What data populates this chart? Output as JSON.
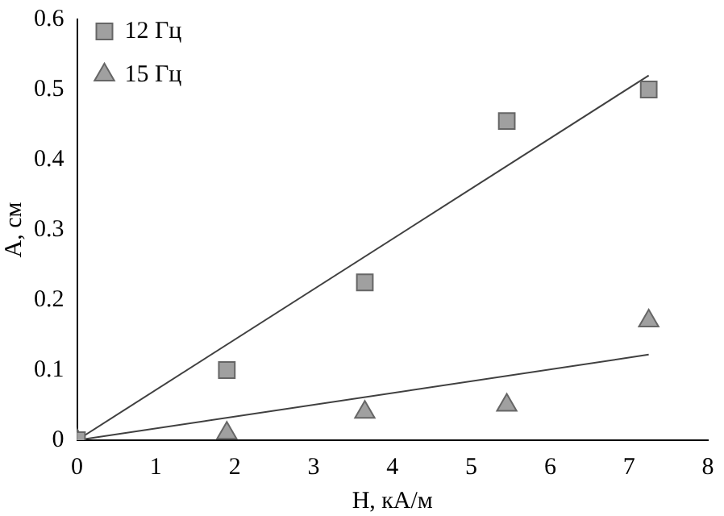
{
  "chart_data": {
    "type": "scatter",
    "xlabel": "H, кА/м",
    "ylabel": "A, см",
    "xlim": [
      0,
      8
    ],
    "xticks": [
      0,
      1,
      2,
      3,
      4,
      5,
      6,
      7,
      8
    ],
    "ylim": [
      0,
      0.6
    ],
    "yticks": [
      0,
      0.1,
      0.2,
      0.3,
      0.4,
      0.5,
      0.6
    ],
    "grid": false,
    "legend": "top left",
    "series": [
      {
        "name": "12 Гц",
        "color": "#a0a0a0",
        "marker": "square",
        "x": [
          0,
          1.9,
          3.65,
          5.45,
          7.25
        ],
        "values": [
          0,
          0.1,
          0.225,
          0.455,
          0.5
        ]
      },
      {
        "name": "15 Гц",
        "color": "#a0a0a0",
        "marker": "triangle",
        "x": [
          0,
          1.9,
          3.65,
          5.45,
          7.25
        ],
        "values": [
          0,
          0.01,
          0.04,
          0.05,
          0.17
        ]
      },
      {
        "type": "line",
        "color": "#404040",
        "marker": "none",
        "x": [
          0,
          7.25
        ],
        "values": [
          0,
          0.52
        ]
      },
      {
        "type": "line",
        "color": "#404040",
        "marker": "none",
        "x": [
          0,
          7.25
        ],
        "values": [
          0,
          0.122
        ]
      }
    ]
  }
}
